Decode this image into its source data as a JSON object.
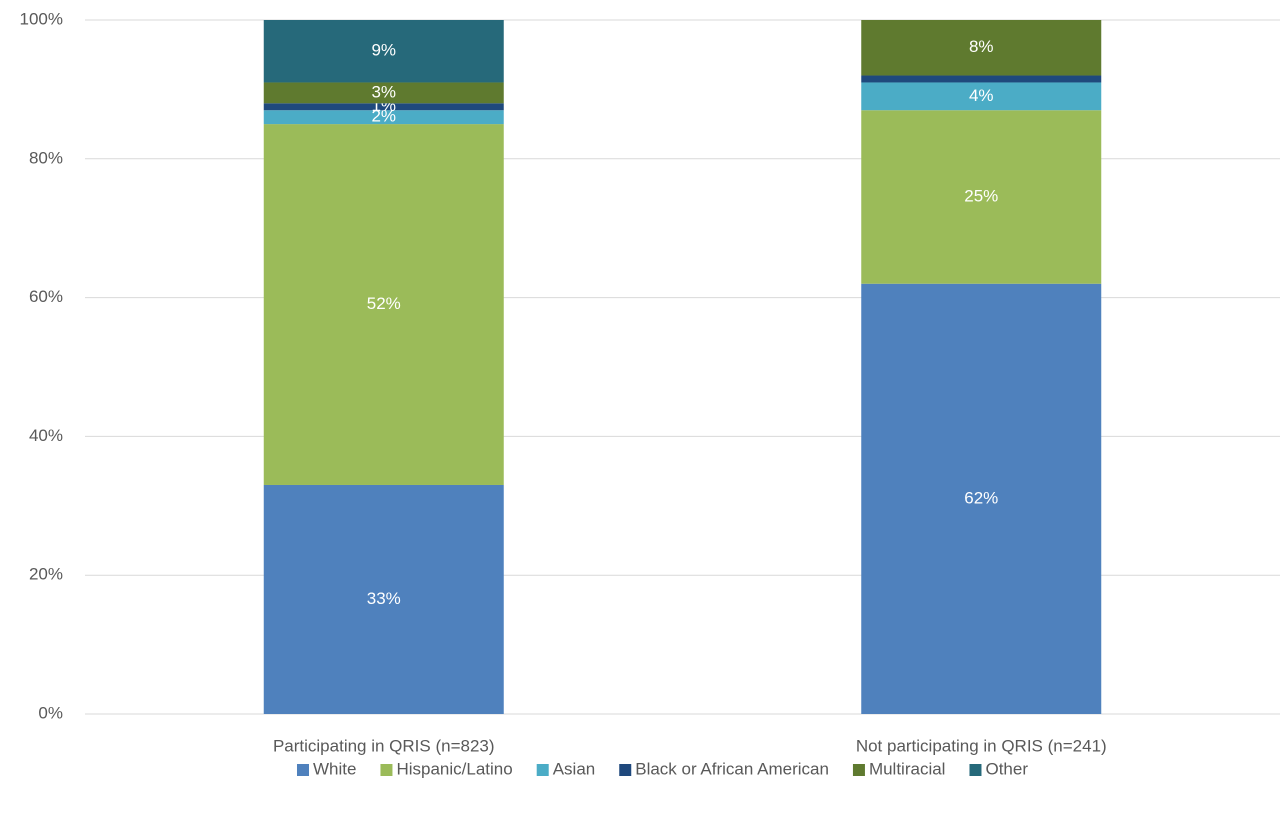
{
  "chart_data": {
    "type": "stacked_bar",
    "categories": [
      "Participating in QRIS (n=823)",
      "Not participating in QRIS (n=241)"
    ],
    "series": [
      {
        "name": "White",
        "color": "#4f81bd",
        "values": [
          33,
          62
        ],
        "value_labels": [
          "33%",
          "62%"
        ]
      },
      {
        "name": "Hispanic/Latino",
        "color": "#9bbb59",
        "values": [
          52,
          25
        ],
        "value_labels": [
          "52%",
          "25%"
        ]
      },
      {
        "name": "Asian",
        "color": "#4bacc6",
        "values": [
          2,
          4
        ],
        "value_labels": [
          "2%",
          "4%"
        ]
      },
      {
        "name": "Black or African American",
        "color": "#1f497d",
        "values": [
          1,
          1
        ],
        "value_labels": [
          "1%",
          null
        ]
      },
      {
        "name": "Multiracial",
        "color": "#5f7a2f",
        "values": [
          3,
          8
        ],
        "value_labels": [
          "3%",
          "8%"
        ]
      },
      {
        "name": "Other",
        "color": "#26697a",
        "values": [
          9,
          0
        ],
        "value_labels": [
          "9%",
          null
        ]
      }
    ],
    "ylim": [
      0,
      100
    ],
    "yticks": [
      {
        "value": 0,
        "label": "0%"
      },
      {
        "value": 20,
        "label": "20%"
      },
      {
        "value": 40,
        "label": "40%"
      },
      {
        "value": 60,
        "label": "60%"
      },
      {
        "value": 80,
        "label": "80%"
      },
      {
        "value": 100,
        "label": "100%"
      }
    ],
    "grid": true,
    "legend": "bottom"
  }
}
